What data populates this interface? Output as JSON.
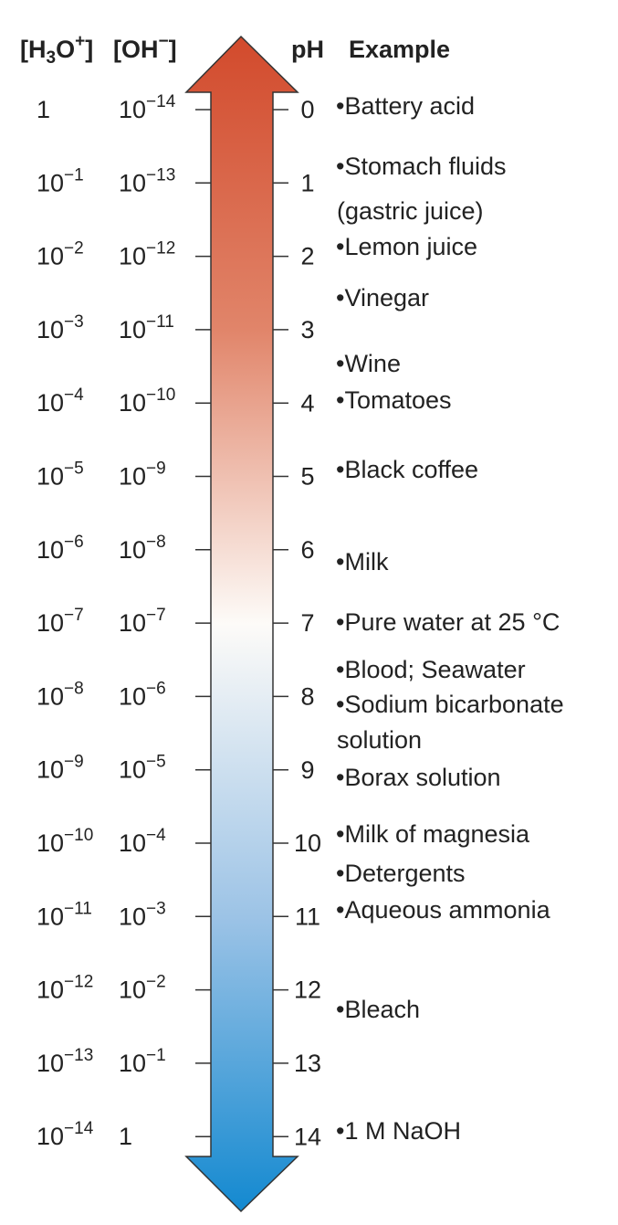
{
  "header": {
    "h3o": {
      "pre": "[H",
      "sub": "3",
      "mid": "O",
      "sup": "+",
      "post": "]"
    },
    "oh": {
      "pre": "[OH",
      "sup": "−",
      "post": "]"
    },
    "ph": "pH",
    "example": "Example"
  },
  "rows": [
    {
      "h3o": {
        "base": "1"
      },
      "oh": {
        "base": "10",
        "exp": "−14"
      },
      "ph": 0
    },
    {
      "h3o": {
        "base": "10",
        "exp": "−1"
      },
      "oh": {
        "base": "10",
        "exp": "−13"
      },
      "ph": 1
    },
    {
      "h3o": {
        "base": "10",
        "exp": "−2"
      },
      "oh": {
        "base": "10",
        "exp": "−12"
      },
      "ph": 2
    },
    {
      "h3o": {
        "base": "10",
        "exp": "−3"
      },
      "oh": {
        "base": "10",
        "exp": "−11"
      },
      "ph": 3
    },
    {
      "h3o": {
        "base": "10",
        "exp": "−4"
      },
      "oh": {
        "base": "10",
        "exp": "−10"
      },
      "ph": 4
    },
    {
      "h3o": {
        "base": "10",
        "exp": "−5"
      },
      "oh": {
        "base": "10",
        "exp": "−9"
      },
      "ph": 5
    },
    {
      "h3o": {
        "base": "10",
        "exp": "−6"
      },
      "oh": {
        "base": "10",
        "exp": "−8"
      },
      "ph": 6
    },
    {
      "h3o": {
        "base": "10",
        "exp": "−7"
      },
      "oh": {
        "base": "10",
        "exp": "−7"
      },
      "ph": 7
    },
    {
      "h3o": {
        "base": "10",
        "exp": "−8"
      },
      "oh": {
        "base": "10",
        "exp": "−6"
      },
      "ph": 8
    },
    {
      "h3o": {
        "base": "10",
        "exp": "−9"
      },
      "oh": {
        "base": "10",
        "exp": "−5"
      },
      "ph": 9
    },
    {
      "h3o": {
        "base": "10",
        "exp": "−10"
      },
      "oh": {
        "base": "10",
        "exp": "−4"
      },
      "ph": 10
    },
    {
      "h3o": {
        "base": "10",
        "exp": "−11"
      },
      "oh": {
        "base": "10",
        "exp": "−3"
      },
      "ph": 11
    },
    {
      "h3o": {
        "base": "10",
        "exp": "−12"
      },
      "oh": {
        "base": "10",
        "exp": "−2"
      },
      "ph": 12
    },
    {
      "h3o": {
        "base": "10",
        "exp": "−13"
      },
      "oh": {
        "base": "10",
        "exp": "−1"
      },
      "ph": 13
    },
    {
      "h3o": {
        "base": "10",
        "exp": "−14"
      },
      "oh": {
        "base": "1"
      },
      "ph": 14
    }
  ],
  "examples": [
    "•Battery acid",
    "•Stomach fluids",
    "(gastric juice)",
    "•Lemon juice",
    "•Vinegar",
    "•Wine",
    "•Tomatoes",
    "•Black coffee",
    "•Milk",
    "•Pure water at 25 °C",
    "•Blood; Seawater",
    "•Sodium bicarbonate",
    "solution",
    "•Borax solution",
    "•Milk of magnesia",
    "•Detergents",
    "•Aqueous ammonia",
    "•Bleach",
    "•1 M NaOH"
  ]
}
